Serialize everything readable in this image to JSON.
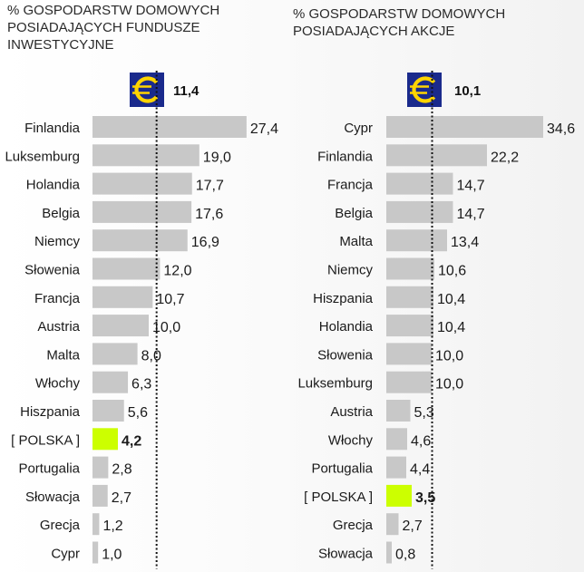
{
  "chart_data": [
    {
      "type": "bar",
      "orientation": "horizontal",
      "title": "% GOSPODARSTW DOMOWYCH POSIADAJĄCYCH FUNDUSZE INWESTYCYJNE",
      "title_lines": [
        "% GOSPODARSTW DOMOWYCH",
        "POSIADAJĄCYCH FUNDUSZE",
        "INWESTYCYJNE"
      ],
      "reference_line": {
        "label": "11,4",
        "value": 11.4,
        "icon": "euro-icon",
        "style": "dotted"
      },
      "categories": [
        "Finlandia",
        "Luksemburg",
        "Holandia",
        "Belgia",
        "Niemcy",
        "Słowenia",
        "Francja",
        "Austria",
        "Malta",
        "Włochy",
        "Hiszpania",
        "[ POLSKA ]",
        "Portugalia",
        "Słowacja",
        "Grecja",
        "Cypr"
      ],
      "values": [
        27.4,
        19.0,
        17.7,
        17.6,
        16.9,
        12.0,
        10.7,
        10.0,
        8.0,
        6.3,
        5.6,
        4.2,
        2.8,
        2.7,
        1.2,
        1.0
      ],
      "value_labels": [
        "27,4",
        "19,0",
        "17,7",
        "17,6",
        "16,9",
        "12,0",
        "10,7",
        "10,0",
        "8,0",
        "6,3",
        "5,6",
        "4,2",
        "2,8",
        "2,7",
        "1,2",
        "1,0"
      ],
      "highlight_index": 11,
      "xlim": [
        0,
        28
      ],
      "bar_color": "#c8c8c8",
      "highlight_color": "#ccff00"
    },
    {
      "type": "bar",
      "orientation": "horizontal",
      "title": "% GOSPODARSTW DOMOWYCH POSIADAJĄCYCH AKCJE",
      "title_lines": [
        "% GOSPODARSTW DOMOWYCH",
        "POSIADAJĄCYCH AKCJE"
      ],
      "reference_line": {
        "label": "10,1",
        "value": 10.1,
        "icon": "euro-icon",
        "style": "dotted"
      },
      "categories": [
        "Cypr",
        "Finlandia",
        "Francja",
        "Belgia",
        "Malta",
        "Niemcy",
        "Hiszpania",
        "Holandia",
        "Słowenia",
        "Luksemburg",
        "Austria",
        "Włochy",
        "Portugalia",
        "[ POLSKA ]",
        "Grecja",
        "Słowacja"
      ],
      "values": [
        34.6,
        22.2,
        14.7,
        14.7,
        13.4,
        10.6,
        10.4,
        10.4,
        10.0,
        10.0,
        5.3,
        4.6,
        4.4,
        3.5,
        2.7,
        0.8
      ],
      "value_labels": [
        "34,6",
        "22,2",
        "14,7",
        "14,7",
        "13,4",
        "10,6",
        "10,4",
        "10,4",
        "10,0",
        "10,0",
        "5,3",
        "4,6",
        "4,4",
        "3,5",
        "2,7",
        "0,8"
      ],
      "highlight_index": 13,
      "xlim": [
        0,
        35
      ],
      "bar_color": "#c8c8c8",
      "highlight_color": "#ccff00"
    }
  ],
  "colors": {
    "euro_background": "#1a2a8c",
    "euro_symbol": "#ffd400"
  }
}
